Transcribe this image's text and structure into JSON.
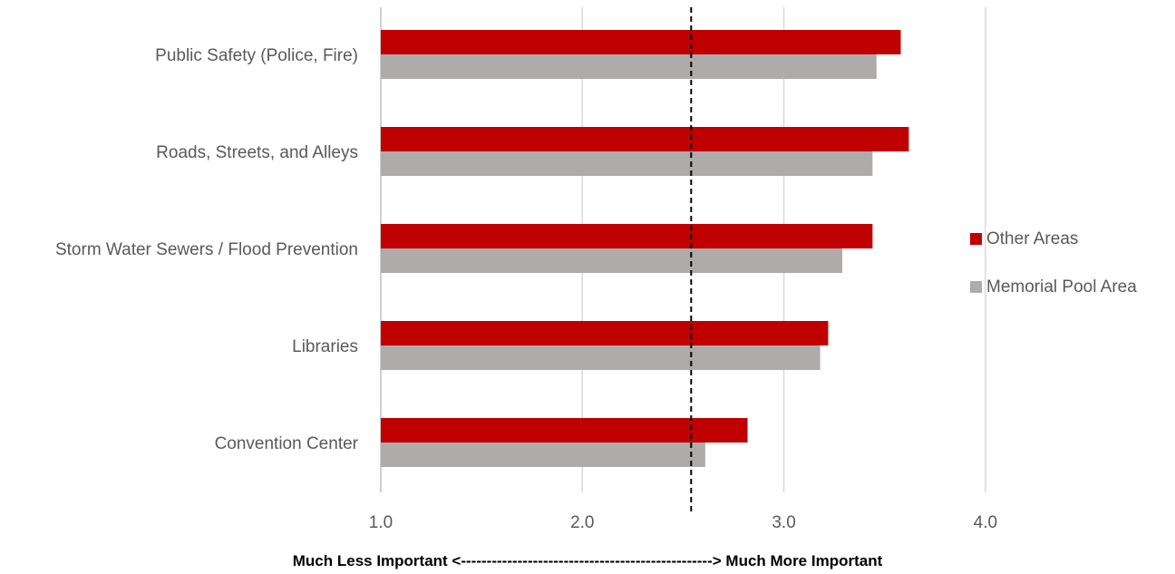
{
  "chart_data": {
    "type": "bar",
    "orientation": "horizontal",
    "categories": [
      "Public Safety (Police, Fire)",
      "Roads, Streets, and Alleys",
      "Storm Water Sewers / Flood Prevention",
      "Libraries",
      "Convention Center"
    ],
    "series": [
      {
        "name": "Other Areas",
        "color": "#c00000",
        "values": [
          3.58,
          3.62,
          3.44,
          3.22,
          2.82
        ]
      },
      {
        "name": "Memorial Pool Area",
        "color": "#afabab",
        "values": [
          3.46,
          3.44,
          3.29,
          3.18,
          2.61
        ]
      }
    ],
    "xlim": [
      1.0,
      4.5
    ],
    "xticks": [
      "1.0",
      "2.0",
      "3.0",
      "4.0"
    ],
    "xtick_values": [
      1.0,
      2.0,
      3.0,
      4.0
    ],
    "reference_line": 2.54,
    "xlabel": "Much Less Important <-------------------------------------------------> Much More Important",
    "grid": "vertical",
    "legend_position": "right"
  }
}
